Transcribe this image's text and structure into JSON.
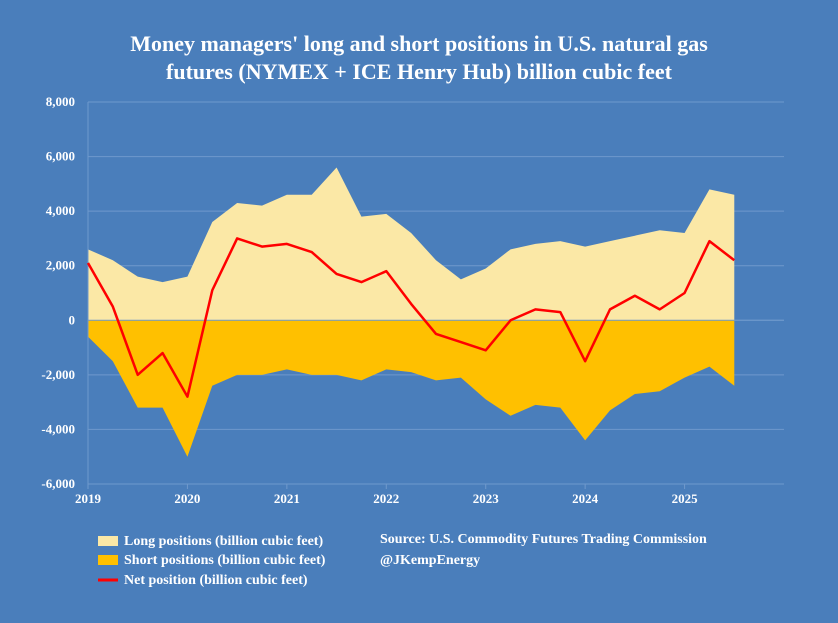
{
  "chart_data": {
    "type": "area",
    "title_line1": "Money managers' long and short positions in U.S. natural gas",
    "title_line2": "futures (NYMEX + ICE Henry Hub) billion cubic feet",
    "ylim": [
      -6000,
      8000
    ],
    "yticks": [
      8000,
      6000,
      4000,
      2000,
      0,
      -2000,
      -4000,
      -6000
    ],
    "ytick_labels": [
      "8,000",
      "6,000",
      "4,000",
      "2,000",
      "0",
      "-2,000",
      "-4,000",
      "-6,000"
    ],
    "xlim": [
      2019.0,
      2026.0
    ],
    "xticks": [
      2019,
      2020,
      2021,
      2022,
      2023,
      2024,
      2025
    ],
    "xtick_labels": [
      "2019",
      "2020",
      "2021",
      "2022",
      "2023",
      "2024",
      "2025"
    ],
    "x": [
      2019.0,
      2019.25,
      2019.5,
      2019.75,
      2020.0,
      2020.25,
      2020.5,
      2020.75,
      2021.0,
      2021.25,
      2021.5,
      2021.75,
      2022.0,
      2022.25,
      2022.5,
      2022.75,
      2023.0,
      2023.25,
      2023.5,
      2023.75,
      2024.0,
      2024.25,
      2024.5,
      2024.75,
      2025.0,
      2025.25,
      2025.5
    ],
    "series": [
      {
        "name": "Long positions (billion cubic feet)",
        "color": "#fbe8a6",
        "values": [
          2600,
          2200,
          1600,
          1400,
          1600,
          3600,
          4300,
          4200,
          4600,
          4600,
          5600,
          3800,
          3900,
          3200,
          2200,
          1500,
          1900,
          2600,
          2800,
          2900,
          2700,
          2900,
          3100,
          3300,
          3200,
          4800,
          4600
        ]
      },
      {
        "name": "Short positions (billion cubic feet)",
        "color": "#ffc000",
        "values": [
          -600,
          -1500,
          -3200,
          -3200,
          -5000,
          -2400,
          -2000,
          -2000,
          -1800,
          -2000,
          -2000,
          -2200,
          -1800,
          -1900,
          -2200,
          -2100,
          -2900,
          -3500,
          -3100,
          -3200,
          -4400,
          -3300,
          -2700,
          -2600,
          -2100,
          -1700,
          -2400
        ]
      },
      {
        "name": "Net position (billion cubic feet)",
        "color": "#ff0000",
        "values": [
          2100,
          500,
          -2000,
          -1200,
          -2800,
          1100,
          3000,
          2700,
          2800,
          2500,
          1700,
          1400,
          1800,
          600,
          -500,
          -800,
          -1100,
          0,
          400,
          300,
          -1500,
          400,
          900,
          400,
          1000,
          2900,
          2200
        ]
      }
    ],
    "legend": [
      "Long positions (billion cubic feet)",
      "Short positions (billion cubic feet)",
      "Net position (billion cubic feet)"
    ],
    "source": "Source: U.S. Commodity Futures Trading Commission",
    "credit": "@JKempEnergy"
  },
  "colors": {
    "background": "#4a7ebb",
    "long": "#fbe8a6",
    "short": "#ffc000",
    "net": "#ff0000",
    "grid": "#6f99cc"
  }
}
